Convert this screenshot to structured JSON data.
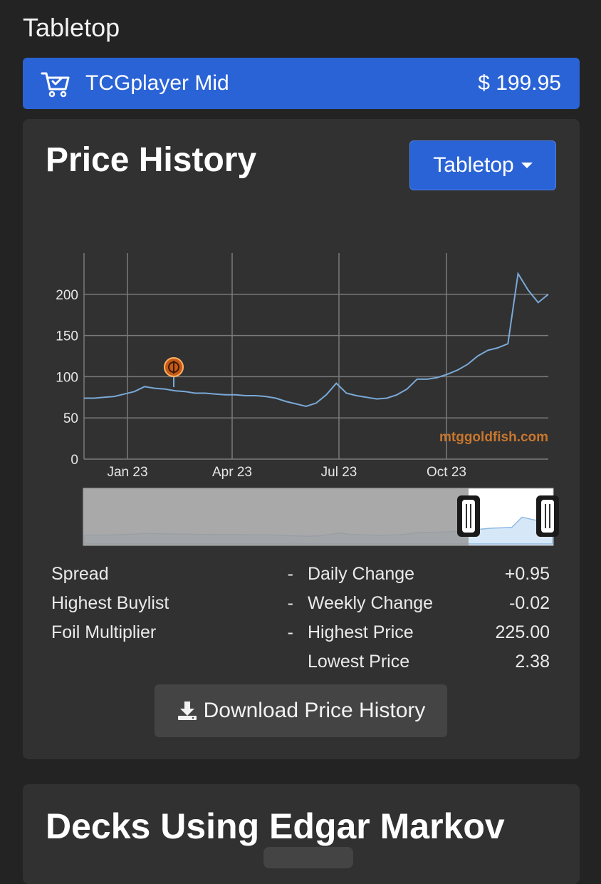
{
  "section": {
    "title": "Tabletop"
  },
  "price_bar": {
    "icon": "shopping-cart-icon",
    "label": "TCGplayer Mid",
    "value": "$ 199.95"
  },
  "price_history": {
    "title": "Price History",
    "dropdown_label": "Tabletop",
    "watermark": "mtggoldfish.com",
    "stats_left": [
      {
        "label": "Spread",
        "value": "-"
      },
      {
        "label": "Highest Buylist",
        "value": "-"
      },
      {
        "label": "Foil Multiplier",
        "value": "-"
      }
    ],
    "stats_right": [
      {
        "label": "Daily Change",
        "value": "+0.95"
      },
      {
        "label": "Weekly Change",
        "value": "-0.02"
      },
      {
        "label": "Highest Price",
        "value": "225.00"
      },
      {
        "label": "Lowest Price",
        "value": "2.38"
      }
    ],
    "download_label": "Download Price History"
  },
  "decks": {
    "title": "Decks Using Edgar Markov"
  },
  "chart_data": {
    "type": "line",
    "x_tick_labels": [
      "Jan 23",
      "Apr 23",
      "Jul 23",
      "Oct 23"
    ],
    "y_ticks": [
      0,
      50,
      100,
      150,
      200
    ],
    "ylim": [
      0,
      250
    ],
    "grid": true,
    "line_color": "#7aa9d8",
    "series": [
      {
        "values": [
          74,
          74,
          75,
          76,
          79,
          82,
          88,
          86,
          85,
          83,
          82,
          80,
          80,
          79,
          78,
          78,
          77,
          77,
          76,
          74,
          70,
          67,
          64,
          68,
          78,
          92,
          80,
          77,
          75,
          73,
          74,
          78,
          85,
          97,
          97,
          99,
          103,
          108,
          115,
          125,
          132,
          135,
          140,
          225,
          205,
          190,
          200
        ]
      }
    ]
  }
}
